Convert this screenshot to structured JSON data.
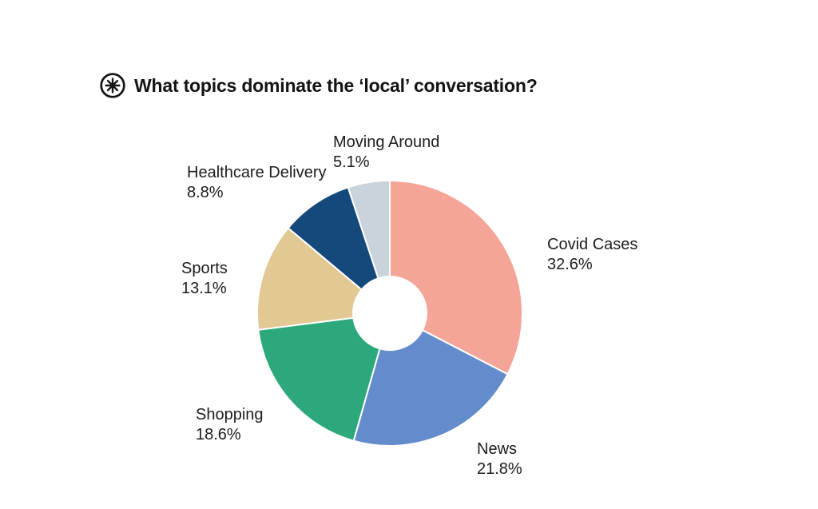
{
  "header": {
    "icon": "asterisk-circle-icon",
    "title": "What topics dominate the ‘local’ conversation?"
  },
  "chart_data": {
    "type": "pie",
    "subtype": "donut",
    "title": "What topics dominate the ‘local’ conversation?",
    "start_angle_deg": 0,
    "direction": "clockwise",
    "inner_radius_ratio": 0.28,
    "separator_color": "#ffffff",
    "segments": [
      {
        "label": "Covid Cases",
        "value": 32.6,
        "display": "32.6%",
        "color": "#F4A597"
      },
      {
        "label": "News",
        "value": 21.8,
        "display": "21.8%",
        "color": "#648CCC"
      },
      {
        "label": "Shopping",
        "value": 18.6,
        "display": "18.6%",
        "color": "#2CA87B"
      },
      {
        "label": "Sports",
        "value": 13.1,
        "display": "13.1%",
        "color": "#E2C893"
      },
      {
        "label": "Healthcare Delivery",
        "value": 8.8,
        "display": "8.8%",
        "color": "#16497B"
      },
      {
        "label": "Moving Around",
        "value": 5.1,
        "display": "5.1%",
        "color": "#C9D3DB"
      }
    ]
  }
}
